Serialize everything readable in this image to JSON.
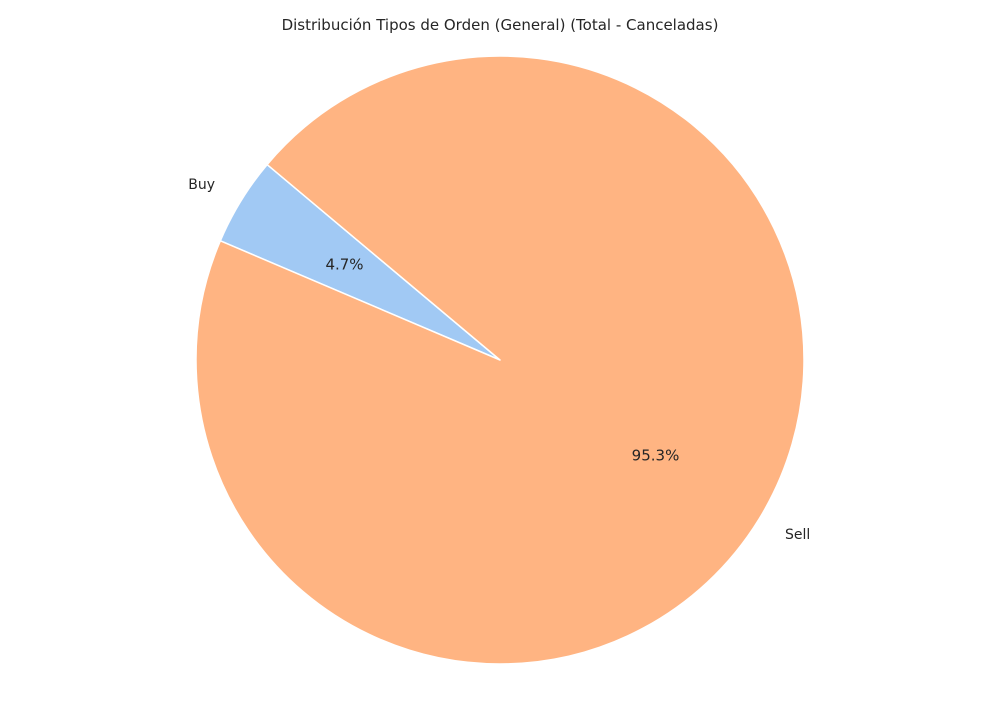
{
  "chart_data": {
    "type": "pie",
    "title": "Distribución Tipos de Orden (General) (Total - Canceladas)",
    "start_angle_deg": 140,
    "direction": "counterclockwise",
    "legend": "none",
    "slices": [
      {
        "label": "Buy",
        "value": 4.7,
        "pct_label": "4.7%",
        "color": "#a1c9f4"
      },
      {
        "label": "Sell",
        "value": 95.3,
        "pct_label": "95.3%",
        "color": "#ffb482"
      }
    ]
  }
}
